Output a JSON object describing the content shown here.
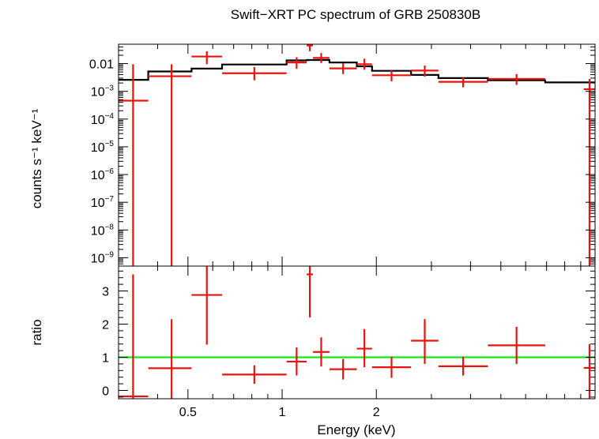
{
  "chart_data": {
    "type": "scatter",
    "title": "Swift−XRT PC spectrum of GRB 250830B",
    "xlabel": "Energy (keV)",
    "x_scale": "log",
    "xlim": [
      0.3,
      10
    ],
    "x_tick_labels": [
      {
        "value": 0.5,
        "label": "0.5"
      },
      {
        "value": 1,
        "label": "1"
      },
      {
        "value": 2,
        "label": "2"
      }
    ],
    "x_minor_ticks": [
      0.3,
      0.4,
      0.6,
      0.7,
      0.8,
      0.9,
      3,
      4,
      5,
      6,
      7,
      8,
      9
    ],
    "top_panel": {
      "ylabel": "counts s⁻¹ keV⁻¹",
      "y_scale": "log",
      "ylim": [
        5e-10,
        0.05
      ],
      "y_tick_labels": [
        {
          "value": 0.01,
          "label": "0.01",
          "base": "",
          "exp": ""
        },
        {
          "value": 0.001,
          "label": "",
          "base": "10",
          "exp": "−3"
        },
        {
          "value": 0.0001,
          "label": "",
          "base": "10",
          "exp": "−4"
        },
        {
          "value": 1e-05,
          "label": "",
          "base": "10",
          "exp": "−5"
        },
        {
          "value": 1e-06,
          "label": "",
          "base": "10",
          "exp": "−6"
        },
        {
          "value": 1e-07,
          "label": "",
          "base": "10",
          "exp": "−7"
        },
        {
          "value": 1e-08,
          "label": "",
          "base": "10",
          "exp": "−8"
        },
        {
          "value": 1e-09,
          "label": "",
          "base": "10",
          "exp": "−9"
        }
      ],
      "data": [
        {
          "x": 0.3339,
          "xlo": 0.3,
          "xhi": 0.3733,
          "y": 0.00046,
          "ylo": 1e-12,
          "yhi": 0.0095
        },
        {
          "x": 0.4433,
          "xlo": 0.3733,
          "xhi": 0.5133,
          "y": 0.0035,
          "ylo": 1e-12,
          "yhi": 0.0095
        },
        {
          "x": 0.5745,
          "xlo": 0.5133,
          "xhi": 0.6427,
          "y": 0.018,
          "ylo": 0.0095,
          "yhi": 0.028
        },
        {
          "x": 0.8149,
          "xlo": 0.6427,
          "xhi": 1.0332,
          "y": 0.0045,
          "ylo": 0.0025,
          "yhi": 0.0075
        },
        {
          "x": 1.1125,
          "xlo": 1.0332,
          "xhi": 1.198,
          "y": 0.011,
          "ylo": 0.0065,
          "yhi": 0.017
        },
        {
          "x": 1.226,
          "xlo": 1.198,
          "xhi": 1.255,
          "y": 0.045,
          "ylo": 0.028,
          "yhi": 0.072
        },
        {
          "x": 1.3331,
          "xlo": 1.255,
          "xhi": 1.416,
          "y": 0.016,
          "ylo": 0.0105,
          "yhi": 0.024
        },
        {
          "x": 1.566,
          "xlo": 1.416,
          "xhi": 1.732,
          "y": 0.0067,
          "ylo": 0.0042,
          "yhi": 0.0105
        },
        {
          "x": 1.832,
          "xlo": 1.732,
          "xhi": 1.938,
          "y": 0.0095,
          "ylo": 0.006,
          "yhi": 0.015
        },
        {
          "x": 2.237,
          "xlo": 1.938,
          "xhi": 2.582,
          "y": 0.0038,
          "ylo": 0.0023,
          "yhi": 0.006
        },
        {
          "x": 2.856,
          "xlo": 2.582,
          "xhi": 3.159,
          "y": 0.0056,
          "ylo": 0.0034,
          "yhi": 0.0085
        },
        {
          "x": 3.789,
          "xlo": 3.159,
          "xhi": 4.545,
          "y": 0.0022,
          "ylo": 0.0014,
          "yhi": 0.0033
        },
        {
          "x": 5.612,
          "xlo": 4.545,
          "xhi": 6.93,
          "y": 0.0028,
          "ylo": 0.0017,
          "yhi": 0.0042
        },
        {
          "x": 9.6,
          "xlo": 9.2,
          "xhi": 10.0,
          "y": 0.0012,
          "ylo": 1e-12,
          "yhi": 0.0028
        }
      ],
      "model": [
        {
          "x0": 0.3,
          "x1": 0.3733,
          "y": 0.0026
        },
        {
          "x0": 0.3733,
          "x1": 0.5133,
          "y": 0.0052
        },
        {
          "x0": 0.5133,
          "x1": 0.6427,
          "y": 0.0066
        },
        {
          "x0": 0.6427,
          "x1": 1.0332,
          "y": 0.0093
        },
        {
          "x0": 1.0332,
          "x1": 1.198,
          "y": 0.013
        },
        {
          "x0": 1.198,
          "x1": 1.255,
          "y": 0.0135
        },
        {
          "x0": 1.255,
          "x1": 1.416,
          "y": 0.0135
        },
        {
          "x0": 1.416,
          "x1": 1.732,
          "y": 0.011
        },
        {
          "x0": 1.732,
          "x1": 1.938,
          "y": 0.008
        },
        {
          "x0": 1.938,
          "x1": 2.582,
          "y": 0.0055
        },
        {
          "x0": 2.582,
          "x1": 3.159,
          "y": 0.0039
        },
        {
          "x0": 3.159,
          "x1": 4.545,
          "y": 0.003
        },
        {
          "x0": 4.545,
          "x1": 6.93,
          "y": 0.0025
        },
        {
          "x0": 6.93,
          "x1": 10.0,
          "y": 0.0021
        }
      ]
    },
    "bottom_panel": {
      "ylabel": "ratio",
      "y_scale": "linear",
      "ylim": [
        -0.25,
        3.75
      ],
      "y_tick_labels": [
        {
          "value": 0,
          "label": "0"
        },
        {
          "value": 1,
          "label": "1"
        },
        {
          "value": 2,
          "label": "2"
        },
        {
          "value": 3,
          "label": "3"
        }
      ],
      "y_minor_step": 0.2,
      "reference_line": 1,
      "data": [
        {
          "x": 0.3339,
          "xlo": 0.3,
          "xhi": 0.3733,
          "y": -0.18,
          "ylo": -0.25,
          "yhi": 3.5
        },
        {
          "x": 0.4433,
          "xlo": 0.3733,
          "xhi": 0.5133,
          "y": 0.67,
          "ylo": -0.25,
          "yhi": 2.15
        },
        {
          "x": 0.5745,
          "xlo": 0.5133,
          "xhi": 0.6427,
          "y": 2.88,
          "ylo": 1.38,
          "yhi": 3.75
        },
        {
          "x": 0.8149,
          "xlo": 0.6427,
          "xhi": 1.0332,
          "y": 0.48,
          "ylo": 0.2,
          "yhi": 0.76
        },
        {
          "x": 1.1125,
          "xlo": 1.0332,
          "xhi": 1.198,
          "y": 0.87,
          "ylo": 0.45,
          "yhi": 1.3
        },
        {
          "x": 1.226,
          "xlo": 1.198,
          "xhi": 1.255,
          "y": 3.5,
          "ylo": 2.2,
          "yhi": 3.75
        },
        {
          "x": 1.3331,
          "xlo": 1.255,
          "xhi": 1.416,
          "y": 1.16,
          "ylo": 0.72,
          "yhi": 1.6
        },
        {
          "x": 1.566,
          "xlo": 1.416,
          "xhi": 1.732,
          "y": 0.64,
          "ylo": 0.33,
          "yhi": 0.95
        },
        {
          "x": 1.832,
          "xlo": 1.732,
          "xhi": 1.938,
          "y": 1.26,
          "ylo": 0.7,
          "yhi": 1.85
        },
        {
          "x": 2.237,
          "xlo": 1.938,
          "xhi": 2.582,
          "y": 0.7,
          "ylo": 0.38,
          "yhi": 1.02
        },
        {
          "x": 2.856,
          "xlo": 2.582,
          "xhi": 3.159,
          "y": 1.5,
          "ylo": 0.8,
          "yhi": 2.15
        },
        {
          "x": 3.789,
          "xlo": 3.159,
          "xhi": 4.545,
          "y": 0.73,
          "ylo": 0.45,
          "yhi": 1.02
        },
        {
          "x": 5.612,
          "xlo": 4.545,
          "xhi": 6.93,
          "y": 1.36,
          "ylo": 0.8,
          "yhi": 1.92
        },
        {
          "x": 9.6,
          "xlo": 9.2,
          "xhi": 10.0,
          "y": 0.68,
          "ylo": -0.25,
          "yhi": 1.4
        }
      ]
    },
    "colors": {
      "data": "#e8140c",
      "model": "#000000",
      "reference": "#19e619",
      "axes": "#000000"
    }
  }
}
